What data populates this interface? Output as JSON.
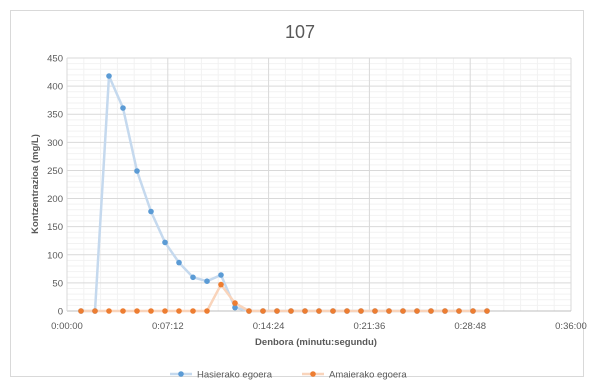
{
  "chart_data": {
    "type": "line",
    "title": "107",
    "xlabel": "Denbora (minutu:segundu)",
    "ylabel": "Kontzentrazioa (mg/L)",
    "xlim": [
      0,
      2160
    ],
    "ylim": [
      0,
      450
    ],
    "x_ticks": [
      {
        "value": 0,
        "label": "0:00:00"
      },
      {
        "value": 432,
        "label": "0:07:12"
      },
      {
        "value": 864,
        "label": "0:14:24"
      },
      {
        "value": 1296,
        "label": "0:21:36"
      },
      {
        "value": 1728,
        "label": "0:28:48"
      },
      {
        "value": 2160,
        "label": "0:36:00"
      }
    ],
    "y_ticks": [
      0,
      50,
      100,
      150,
      200,
      250,
      300,
      350,
      400,
      450
    ],
    "x_unit_note": "seconds",
    "grid": true,
    "legend_position": "bottom",
    "series": [
      {
        "name": "Hasierako egoera",
        "color": "#5b9bd5",
        "x": [
          60,
          120,
          180,
          240,
          300,
          360,
          420,
          480,
          540,
          600,
          660,
          720,
          780,
          840,
          900,
          960,
          1020,
          1080,
          1140,
          1200,
          1260,
          1320,
          1380,
          1440,
          1500,
          1560,
          1620,
          1680,
          1740,
          1800
        ],
        "y": [
          0,
          0,
          418,
          361,
          249,
          177,
          122,
          86,
          60,
          53,
          64,
          6,
          0,
          0,
          0,
          0,
          0,
          0,
          0,
          0,
          0,
          0,
          0,
          0,
          0,
          0,
          0,
          0,
          0,
          0
        ]
      },
      {
        "name": "Amaierako egoera",
        "color": "#ed7d31",
        "x": [
          60,
          120,
          180,
          240,
          300,
          360,
          420,
          480,
          540,
          600,
          660,
          720,
          780,
          840,
          900,
          960,
          1020,
          1080,
          1140,
          1200,
          1260,
          1320,
          1380,
          1440,
          1500,
          1560,
          1620,
          1680,
          1740,
          1800
        ],
        "y": [
          0,
          0,
          0,
          0,
          0,
          0,
          0,
          0,
          0,
          0,
          47,
          14,
          0,
          0,
          0,
          0,
          0,
          0,
          0,
          0,
          0,
          0,
          0,
          0,
          0,
          0,
          0,
          0,
          0,
          0
        ]
      }
    ]
  }
}
